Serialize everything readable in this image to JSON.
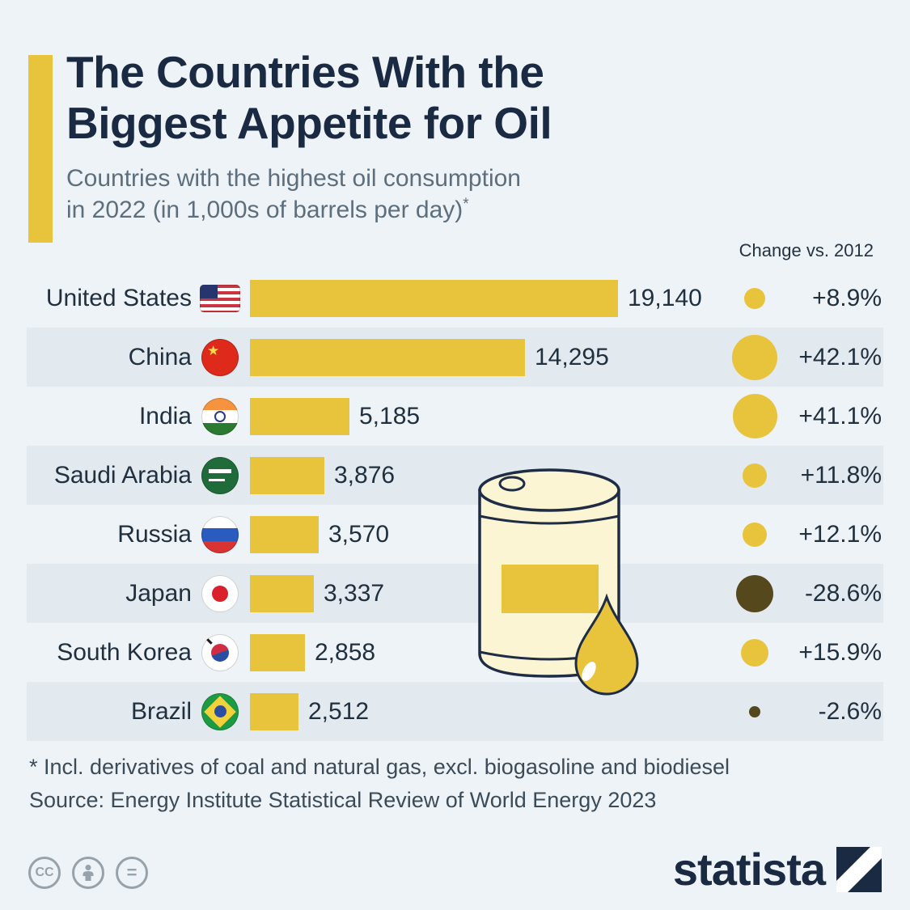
{
  "title": {
    "line1": "The Countries With the",
    "line2": "Biggest Appetite for Oil"
  },
  "subtitle": {
    "line1": "Countries with the highest oil consumption",
    "line2": "in 2022 (in 1,000s of barrels per day)",
    "footnote_marker": "*"
  },
  "change_header": "Change vs. 2012",
  "chart_data": {
    "type": "bar",
    "title": "The Countries With the Biggest Appetite for Oil",
    "subtitle": "Countries with the highest oil consumption in 2022 (in 1,000s of barrels per day)*",
    "unit": "1,000s of barrels per day",
    "categories": [
      "United States",
      "China",
      "India",
      "Saudi Arabia",
      "Russia",
      "Japan",
      "South Korea",
      "Brazil"
    ],
    "values": [
      19140,
      14295,
      5185,
      3876,
      3570,
      3337,
      2858,
      2512
    ],
    "value_labels": [
      "19,140",
      "14,295",
      "5,185",
      "3,876",
      "3,570",
      "3,337",
      "2,858",
      "2,512"
    ],
    "change_vs_2012_pct": [
      8.9,
      42.1,
      41.1,
      11.8,
      12.1,
      -28.6,
      15.9,
      -2.6
    ],
    "change_labels": [
      "+8.9%",
      "+42.1%",
      "+41.1%",
      "+11.8%",
      "+12.1%",
      "-28.6%",
      "+15.9%",
      "-2.6%"
    ],
    "xlim": [
      0,
      19140
    ],
    "legend": "Change vs. 2012 (bubble size = magnitude, dark = decrease)"
  },
  "rows": [
    {
      "country": "United States",
      "flag": "us",
      "value": "19,140",
      "change": "+8.9%"
    },
    {
      "country": "China",
      "flag": "cn",
      "value": "14,295",
      "change": "+42.1%"
    },
    {
      "country": "India",
      "flag": "in",
      "value": "5,185",
      "change": "+41.1%"
    },
    {
      "country": "Saudi Arabia",
      "flag": "sa",
      "value": "3,876",
      "change": "+11.8%"
    },
    {
      "country": "Russia",
      "flag": "ru",
      "value": "3,570",
      "change": "+12.1%"
    },
    {
      "country": "Japan",
      "flag": "jp",
      "value": "3,337",
      "change": "-28.6%"
    },
    {
      "country": "South Korea",
      "flag": "kr",
      "value": "2,858",
      "change": "+15.9%"
    },
    {
      "country": "Brazil",
      "flag": "br",
      "value": "2,512",
      "change": "-2.6%"
    }
  ],
  "footnotes": {
    "note": "* Incl. derivatives of coal and natural gas, excl. biogasoline and biodiesel",
    "source": "Source: Energy Institute Statistical Review of World Energy 2023"
  },
  "branding": {
    "wordmark": "statista",
    "license_cc": "CC",
    "license_nd": "="
  },
  "colors": {
    "background": "#eef3f7",
    "stripe": "#e2e9ef",
    "accent_yellow": "#e8c33c",
    "navy": "#1b2a43",
    "negative_olive": "#55481d",
    "text_dark": "#20303e",
    "subtitle_gray": "#5d6e7d",
    "icon_gray": "#97a2ab",
    "barrel_cream": "#fbf5d3"
  }
}
